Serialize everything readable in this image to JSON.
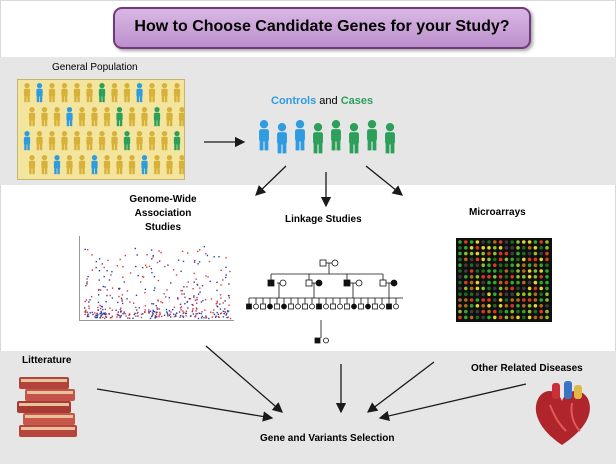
{
  "title": "How to Choose Candidate Genes for your Study?",
  "general_population": "General Population",
  "controls_label": "Controls",
  "and_label": "and",
  "cases_label": "Cases",
  "gwas_title_line1": "Genome-Wide",
  "gwas_title_line2": "Association Studies",
  "linkage_title": "Linkage Studies",
  "microarrays_title": "Microarrays",
  "litterature": "Litterature",
  "other_diseases": "Other Related Diseases",
  "gene_selection": "Gene and Variants Selection",
  "colors": {
    "title_border": "#6e3a78",
    "title_fill": "#c79ad6",
    "controls": "#2f9be0",
    "cases": "#2ca05a",
    "person_yellow": "#d8b13a",
    "population_bg": "#f3e59d",
    "band_gray": "#e6e6e6"
  },
  "icons": [
    "person-icon",
    "books-icon",
    "heart-icon",
    "arrow-icon"
  ]
}
